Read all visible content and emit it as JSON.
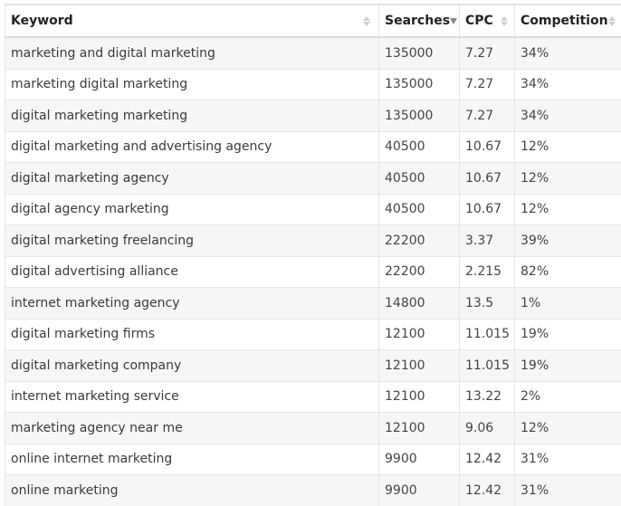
{
  "columns": {
    "keyword": "Keyword",
    "searches": "Searches",
    "cpc": "CPC",
    "competition": "Competition"
  },
  "sort": {
    "column": "searches",
    "direction": "descending"
  },
  "rows": [
    {
      "keyword": "marketing and digital marketing",
      "searches": "135000",
      "cpc": "7.27",
      "competition": "34%"
    },
    {
      "keyword": "marketing digital marketing",
      "searches": "135000",
      "cpc": "7.27",
      "competition": "34%"
    },
    {
      "keyword": "digital marketing marketing",
      "searches": "135000",
      "cpc": "7.27",
      "competition": "34%"
    },
    {
      "keyword": "digital marketing and advertising agency",
      "searches": "40500",
      "cpc": "10.67",
      "competition": "12%"
    },
    {
      "keyword": "digital marketing agency",
      "searches": "40500",
      "cpc": "10.67",
      "competition": "12%"
    },
    {
      "keyword": "digital agency marketing",
      "searches": "40500",
      "cpc": "10.67",
      "competition": "12%"
    },
    {
      "keyword": "digital marketing freelancing",
      "searches": "22200",
      "cpc": "3.37",
      "competition": "39%"
    },
    {
      "keyword": "digital advertising alliance",
      "searches": "22200",
      "cpc": "2.215",
      "competition": "82%"
    },
    {
      "keyword": "internet marketing agency",
      "searches": "14800",
      "cpc": "13.5",
      "competition": "1%"
    },
    {
      "keyword": "digital marketing firms",
      "searches": "12100",
      "cpc": "11.015",
      "competition": "19%"
    },
    {
      "keyword": "digital marketing company",
      "searches": "12100",
      "cpc": "11.015",
      "competition": "19%"
    },
    {
      "keyword": "internet marketing service",
      "searches": "12100",
      "cpc": "13.22",
      "competition": "2%"
    },
    {
      "keyword": "marketing agency near me",
      "searches": "12100",
      "cpc": "9.06",
      "competition": "12%"
    },
    {
      "keyword": "online internet marketing",
      "searches": "9900",
      "cpc": "12.42",
      "competition": "31%"
    },
    {
      "keyword": "online marketing",
      "searches": "9900",
      "cpc": "12.42",
      "competition": "31%"
    }
  ]
}
